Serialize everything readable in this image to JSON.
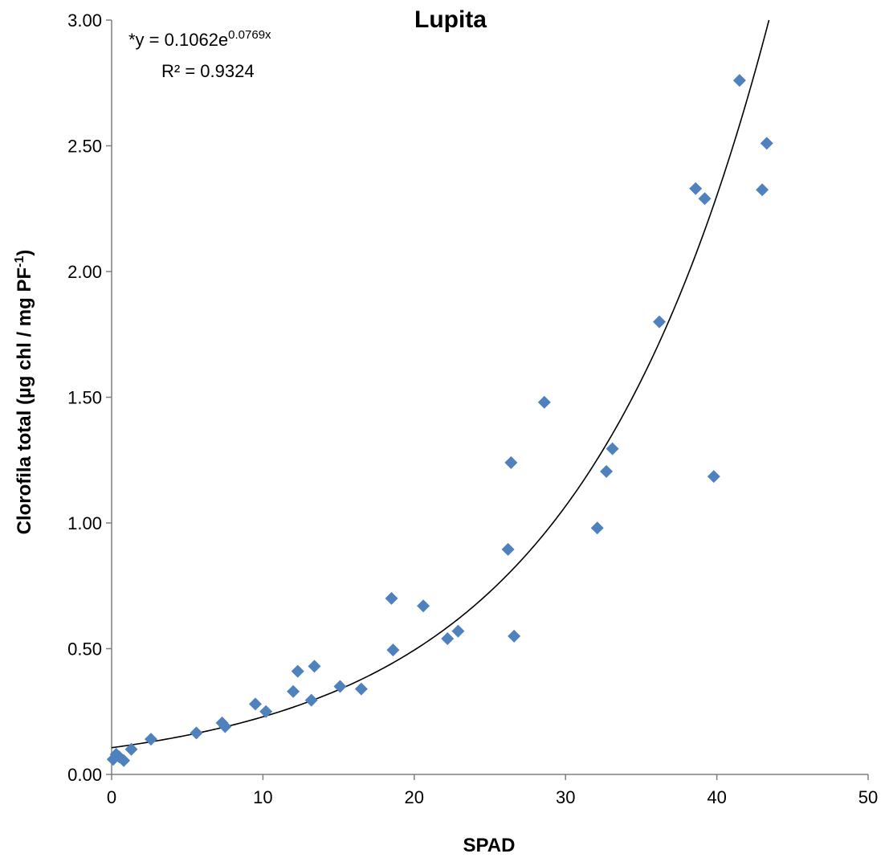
{
  "chart_data": {
    "type": "scatter",
    "title": "Lupita",
    "xlabel": "SPAD",
    "ylabel_main": "Clorofila total (µg chl / mg PF",
    "ylabel_sup": "-1",
    "ylabel_close": ")",
    "xlim": [
      0,
      50
    ],
    "ylim": [
      0,
      3
    ],
    "x_ticks": [
      "0",
      "10",
      "20",
      "30",
      "40",
      "50"
    ],
    "y_ticks": [
      "0.00",
      "0.50",
      "1.00",
      "1.50",
      "2.00",
      "2.50",
      "3.00"
    ],
    "grid": false,
    "legend": "none",
    "marker_color": "#4F81BD",
    "trendline": {
      "type": "exponential",
      "a": 0.1062,
      "b": 0.0769,
      "equation_prefix": "*y = 0.1062e",
      "equation_exponent": "0.0769x",
      "r2_label": "R² = 0.9324"
    },
    "series": [
      {
        "points": [
          [
            0.1,
            0.06
          ],
          [
            0.3,
            0.08
          ],
          [
            0.5,
            0.07
          ],
          [
            0.8,
            0.055
          ],
          [
            1.3,
            0.1
          ],
          [
            2.6,
            0.14
          ],
          [
            5.6,
            0.165
          ],
          [
            7.3,
            0.205
          ],
          [
            7.5,
            0.19
          ],
          [
            9.5,
            0.28
          ],
          [
            10.2,
            0.25
          ],
          [
            12.0,
            0.33
          ],
          [
            12.3,
            0.41
          ],
          [
            13.2,
            0.295
          ],
          [
            13.4,
            0.43
          ],
          [
            15.1,
            0.35
          ],
          [
            16.5,
            0.34
          ],
          [
            18.5,
            0.7
          ],
          [
            18.6,
            0.495
          ],
          [
            20.6,
            0.67
          ],
          [
            22.2,
            0.54
          ],
          [
            22.9,
            0.57
          ],
          [
            26.2,
            0.895
          ],
          [
            26.4,
            1.24
          ],
          [
            26.6,
            0.55
          ],
          [
            28.6,
            1.48
          ],
          [
            32.1,
            0.98
          ],
          [
            32.7,
            1.205
          ],
          [
            33.1,
            1.295
          ],
          [
            36.2,
            1.8
          ],
          [
            38.6,
            2.33
          ],
          [
            39.2,
            2.29
          ],
          [
            39.8,
            1.185
          ],
          [
            41.5,
            2.76
          ],
          [
            43.0,
            2.325
          ],
          [
            43.3,
            2.51
          ]
        ]
      }
    ]
  }
}
